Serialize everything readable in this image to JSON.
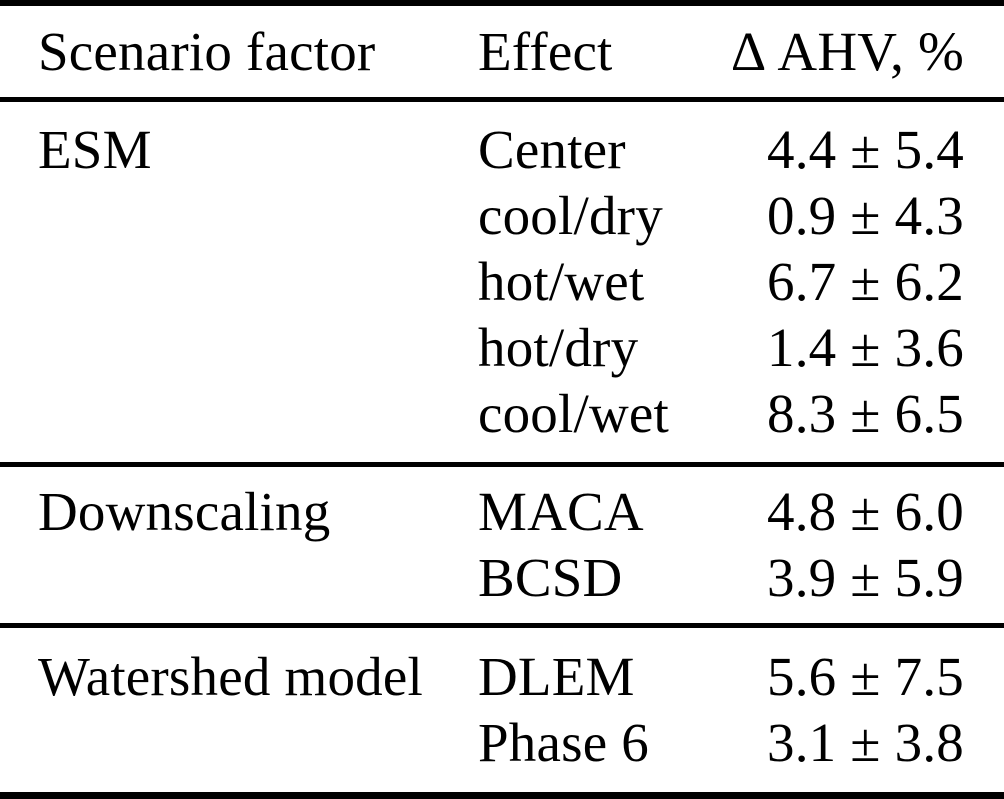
{
  "table": {
    "columns": [
      "Scenario factor",
      "Effect",
      "Δ AHV, %"
    ],
    "sections": [
      {
        "factor": "ESM",
        "rows": [
          {
            "effect": "Center",
            "value": "4.4 ± 5.4"
          },
          {
            "effect": "cool/dry",
            "value": "0.9 ± 4.3"
          },
          {
            "effect": "hot/wet",
            "value": "6.7 ± 6.2"
          },
          {
            "effect": "hot/dry",
            "value": "1.4 ± 3.6"
          },
          {
            "effect": "cool/wet",
            "value": "8.3 ± 6.5"
          }
        ]
      },
      {
        "factor": "Downscaling",
        "rows": [
          {
            "effect": "MACA",
            "value": "4.8 ± 6.0"
          },
          {
            "effect": "BCSD",
            "value": "3.9 ± 5.9"
          }
        ]
      },
      {
        "factor": "Watershed model",
        "rows": [
          {
            "effect": "DLEM",
            "value": "5.6 ± 7.5"
          },
          {
            "effect": "Phase 6",
            "value": "3.1 ± 3.8"
          }
        ]
      }
    ]
  },
  "chart_data": {
    "type": "table",
    "title": "",
    "columns": [
      "Scenario factor",
      "Effect",
      "Δ AHV, %"
    ],
    "rows": [
      {
        "scenario_factor": "ESM",
        "effect": "Center",
        "delta_ahv_mean": 4.4,
        "delta_ahv_sd": 5.4
      },
      {
        "scenario_factor": "ESM",
        "effect": "cool/dry",
        "delta_ahv_mean": 0.9,
        "delta_ahv_sd": 4.3
      },
      {
        "scenario_factor": "ESM",
        "effect": "hot/wet",
        "delta_ahv_mean": 6.7,
        "delta_ahv_sd": 6.2
      },
      {
        "scenario_factor": "ESM",
        "effect": "hot/dry",
        "delta_ahv_mean": 1.4,
        "delta_ahv_sd": 3.6
      },
      {
        "scenario_factor": "ESM",
        "effect": "cool/wet",
        "delta_ahv_mean": 8.3,
        "delta_ahv_sd": 6.5
      },
      {
        "scenario_factor": "Downscaling",
        "effect": "MACA",
        "delta_ahv_mean": 4.8,
        "delta_ahv_sd": 6.0
      },
      {
        "scenario_factor": "Downscaling",
        "effect": "BCSD",
        "delta_ahv_mean": 3.9,
        "delta_ahv_sd": 5.9
      },
      {
        "scenario_factor": "Watershed model",
        "effect": "DLEM",
        "delta_ahv_mean": 5.6,
        "delta_ahv_sd": 7.5
      },
      {
        "scenario_factor": "Watershed model",
        "effect": "Phase 6",
        "delta_ahv_mean": 3.1,
        "delta_ahv_sd": 3.8
      }
    ]
  }
}
